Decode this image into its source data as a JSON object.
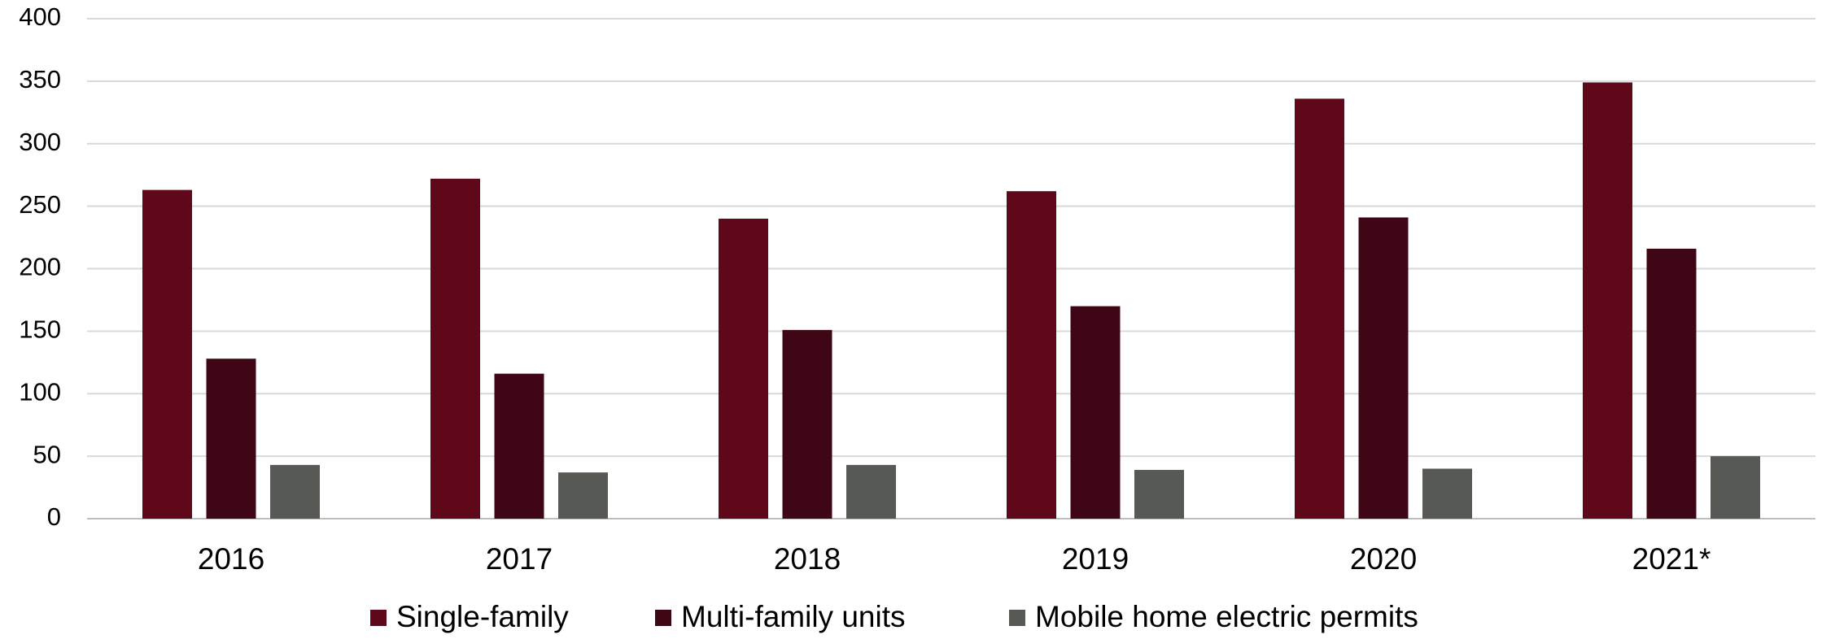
{
  "chart_data": {
    "type": "bar",
    "categories": [
      "2016",
      "2017",
      "2018",
      "2019",
      "2020",
      "2021*"
    ],
    "series": [
      {
        "name": "Single-family",
        "color": "#5e0819",
        "values": [
          263,
          272,
          240,
          262,
          336,
          349
        ]
      },
      {
        "name": "Multi-family units",
        "color": "#3f0715",
        "values": [
          128,
          116,
          151,
          170,
          241,
          216
        ]
      },
      {
        "name": "Mobile home electric permits",
        "color": "#575954",
        "values": [
          43,
          37,
          43,
          39,
          40,
          50
        ]
      }
    ],
    "ylim": [
      0,
      400
    ],
    "yticks": [
      0,
      50,
      100,
      150,
      200,
      250,
      300,
      350,
      400
    ],
    "grid": true,
    "legend": "bottom"
  }
}
